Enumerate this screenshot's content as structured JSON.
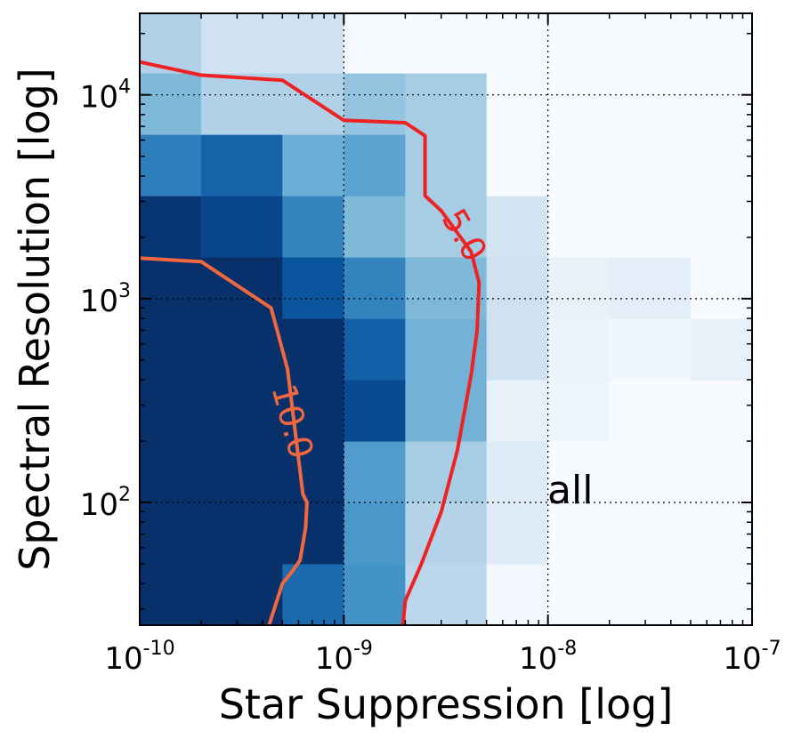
{
  "chart_data": {
    "type": "heatmap",
    "xlabel": "Star Suppression [log]",
    "ylabel": "Spectral Resolution [log]",
    "x_scale": "log",
    "y_scale": "log",
    "xlim": [
      1e-10,
      1e-07
    ],
    "ylim": [
      25,
      25119
    ],
    "grid": true,
    "colormap": "Blues",
    "annotation": "all",
    "x_ticks": [
      {
        "value": 1e-10,
        "base": "10",
        "exp": "-10"
      },
      {
        "value": 1e-09,
        "base": "10",
        "exp": "-9"
      },
      {
        "value": 1e-08,
        "base": "10",
        "exp": "-8"
      },
      {
        "value": 1e-07,
        "base": "10",
        "exp": "-7"
      }
    ],
    "y_ticks": [
      {
        "value": 100,
        "base": "10",
        "exp": "2"
      },
      {
        "value": 1000,
        "base": "10",
        "exp": "3"
      },
      {
        "value": 10000,
        "base": "10",
        "exp": "4"
      }
    ],
    "x_edges": [
      1e-10,
      2e-10,
      5e-10,
      1e-09,
      2e-09,
      5e-09,
      1e-08,
      2e-08,
      5e-08,
      1e-07
    ],
    "y_edges": [
      25,
      50,
      100,
      200,
      400,
      800,
      1600,
      3200,
      6400,
      12800,
      25119
    ],
    "cells": [
      [
        1.0,
        1.0,
        0.78,
        0.62,
        0.28,
        0.02,
        0.0,
        0.0,
        0.0
      ],
      [
        1.0,
        1.0,
        1.0,
        0.6,
        0.3,
        0.12,
        0.0,
        0.0,
        0.0
      ],
      [
        1.0,
        1.0,
        1.0,
        0.58,
        0.35,
        0.12,
        0.0,
        0.0,
        0.0
      ],
      [
        1.0,
        1.0,
        1.0,
        0.9,
        0.48,
        0.08,
        0.05,
        0.0,
        0.0
      ],
      [
        1.0,
        1.0,
        1.0,
        0.82,
        0.48,
        0.2,
        0.06,
        0.04,
        0.08
      ],
      [
        1.0,
        1.0,
        0.86,
        0.68,
        0.45,
        0.2,
        0.08,
        0.1,
        0.0
      ],
      [
        0.98,
        0.92,
        0.68,
        0.45,
        0.35,
        0.18,
        0.0,
        0.0,
        0.0
      ],
      [
        0.7,
        0.8,
        0.5,
        0.55,
        0.35,
        0.0,
        0.0,
        0.0,
        0.0
      ],
      [
        0.45,
        0.32,
        0.32,
        0.4,
        0.35,
        0.0,
        0.0,
        0.0,
        0.0
      ],
      [
        0.32,
        0.2,
        0.2,
        0.0,
        0.0,
        0.0,
        0.0,
        0.0,
        0.0
      ]
    ],
    "contours": [
      {
        "level": "5.0",
        "color": "#ee2222",
        "points": [
          [
            1e-10,
            14500
          ],
          [
            2e-10,
            12500
          ],
          [
            5e-10,
            11800
          ],
          [
            1e-09,
            7500
          ],
          [
            2e-09,
            7300
          ],
          [
            2.5e-09,
            6300
          ],
          [
            2.5e-09,
            3200
          ],
          [
            3e-09,
            2700
          ],
          [
            4.2e-09,
            1700
          ],
          [
            4.6e-09,
            1200
          ],
          [
            4.5e-09,
            700
          ],
          [
            4.2e-09,
            420
          ],
          [
            3.6e-09,
            180
          ],
          [
            3e-09,
            90
          ],
          [
            2.4e-09,
            50
          ],
          [
            2e-09,
            33
          ],
          [
            1.95e-09,
            25
          ]
        ],
        "label_at": [
          3.9e-09,
          2050
        ],
        "label_angle": 60
      },
      {
        "level": "10.0",
        "color": "#f2683e",
        "points": [
          [
            1e-10,
            1580
          ],
          [
            2e-10,
            1520
          ],
          [
            4.4e-10,
            900
          ],
          [
            5e-10,
            560
          ],
          [
            5.3e-10,
            450
          ],
          [
            6.3e-10,
            110
          ],
          [
            6.6e-10,
            100
          ],
          [
            6.5e-10,
            75
          ],
          [
            6.1e-10,
            52
          ],
          [
            5.5e-10,
            45
          ],
          [
            5e-10,
            40
          ],
          [
            4.3e-10,
            25
          ]
        ],
        "label_at": [
          5.6e-10,
          250
        ],
        "label_angle": 75
      }
    ]
  }
}
